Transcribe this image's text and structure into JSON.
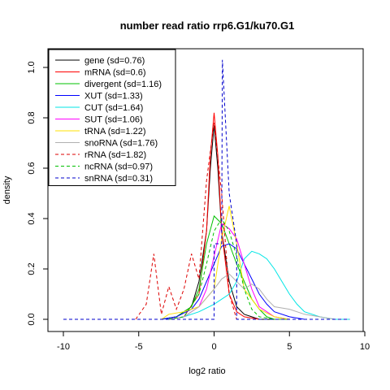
{
  "chart_data": {
    "type": "line",
    "title": "number read ratio rrp6.G1/ku70.G1",
    "xlabel": "log2 ratio",
    "ylabel": "density",
    "xlim": [
      -10,
      10
    ],
    "ylim": [
      0,
      1.05
    ],
    "xticks": [
      -10,
      -5,
      0,
      5,
      10
    ],
    "yticks": [
      0.0,
      0.2,
      0.4,
      0.6,
      0.8,
      1.0
    ],
    "xtick_labels": [
      "-10",
      "-5",
      "0",
      "5",
      "10"
    ],
    "ytick_labels": [
      "0.0",
      "0.2",
      "0.4",
      "0.6",
      "0.8",
      "1.0"
    ],
    "grid": false,
    "legend_position": "top-left",
    "series": [
      {
        "name": "gene (sd=0.76)",
        "color": "#000000",
        "dash": false,
        "x": [
          -3.5,
          -2.5,
          -1.5,
          -1.0,
          -0.5,
          -0.25,
          0.0,
          0.25,
          0.5,
          1.0,
          1.5,
          2.0,
          2.5,
          3.0,
          4.0,
          5.0
        ],
        "y": [
          0.0,
          0.01,
          0.05,
          0.15,
          0.35,
          0.6,
          0.77,
          0.6,
          0.35,
          0.15,
          0.05,
          0.02,
          0.01,
          0.0,
          0.0,
          0.0
        ]
      },
      {
        "name": "mRNA (sd=0.6)",
        "color": "#ff0000",
        "dash": false,
        "x": [
          -3.0,
          -2.0,
          -1.0,
          -0.5,
          -0.25,
          0.0,
          0.25,
          0.5,
          1.0,
          1.5,
          2.0,
          3.0
        ],
        "y": [
          0.0,
          0.01,
          0.1,
          0.35,
          0.65,
          0.82,
          0.65,
          0.35,
          0.1,
          0.03,
          0.01,
          0.0
        ]
      },
      {
        "name": "divergent (sd=1.16)",
        "color": "#00c000",
        "dash": false,
        "x": [
          -3.5,
          -2.5,
          -1.5,
          -1.0,
          -0.5,
          0.0,
          0.5,
          1.0,
          1.5,
          2.0,
          2.5,
          3.0,
          3.5,
          4.0,
          5.0
        ],
        "y": [
          0.0,
          0.01,
          0.05,
          0.12,
          0.3,
          0.41,
          0.38,
          0.3,
          0.22,
          0.15,
          0.08,
          0.04,
          0.01,
          0.0,
          0.0
        ]
      },
      {
        "name": "XUT (sd=1.33)",
        "color": "#0000ff",
        "dash": false,
        "x": [
          -3.5,
          -2.5,
          -1.5,
          -1.0,
          -0.5,
          0.0,
          0.5,
          1.0,
          1.5,
          2.0,
          2.5,
          3.0,
          3.5,
          4.0,
          5.0,
          6.0
        ],
        "y": [
          0.0,
          0.01,
          0.04,
          0.08,
          0.15,
          0.22,
          0.29,
          0.3,
          0.28,
          0.22,
          0.16,
          0.1,
          0.06,
          0.03,
          0.01,
          0.0
        ]
      },
      {
        "name": "CUT (sd=1.64)",
        "color": "#00e5e5",
        "dash": false,
        "x": [
          -3.0,
          -2.0,
          -1.0,
          0.0,
          1.0,
          1.5,
          2.0,
          2.5,
          3.0,
          3.5,
          4.0,
          4.5,
          5.0,
          5.5,
          6.0,
          7.0,
          8.0,
          9.0
        ],
        "y": [
          0.0,
          0.01,
          0.03,
          0.06,
          0.1,
          0.15,
          0.24,
          0.27,
          0.26,
          0.24,
          0.2,
          0.15,
          0.1,
          0.06,
          0.03,
          0.01,
          0.0,
          0.0
        ]
      },
      {
        "name": "SUT (sd=1.06)",
        "color": "#ff00ff",
        "dash": false,
        "x": [
          -3.0,
          -2.0,
          -1.0,
          -0.5,
          0.0,
          0.5,
          1.0,
          1.5,
          2.0,
          2.5,
          3.0,
          4.0,
          5.0
        ],
        "y": [
          0.0,
          0.01,
          0.05,
          0.12,
          0.25,
          0.38,
          0.36,
          0.32,
          0.22,
          0.12,
          0.05,
          0.01,
          0.0
        ]
      },
      {
        "name": "tRNA (sd=1.22)",
        "color": "#ffe000",
        "dash": false,
        "x": [
          -3.5,
          -3.0,
          -2.0,
          -1.0,
          0.0,
          0.5,
          1.0,
          1.5,
          2.0,
          3.0,
          4.0,
          5.0
        ],
        "y": [
          0.0,
          0.02,
          0.03,
          0.05,
          0.12,
          0.32,
          0.45,
          0.3,
          0.12,
          0.04,
          0.01,
          0.0
        ]
      },
      {
        "name": "snoRNA (sd=1.76)",
        "color": "#b0b0b0",
        "dash": false,
        "x": [
          -3.0,
          -2.0,
          -1.0,
          0.0,
          0.5,
          1.0,
          1.5,
          2.0,
          2.5,
          3.0,
          3.5,
          4.0,
          5.0,
          6.0,
          7.0,
          8.0
        ],
        "y": [
          0.0,
          0.01,
          0.05,
          0.12,
          0.16,
          0.18,
          0.15,
          0.12,
          0.14,
          0.12,
          0.08,
          0.05,
          0.04,
          0.02,
          0.01,
          0.0
        ]
      },
      {
        "name": "rRNA (sd=1.82)",
        "color": "#dd0000",
        "dash": true,
        "x": [
          -5.2,
          -4.5,
          -4.0,
          -3.5,
          -3.0,
          -2.5,
          -2.0,
          -1.5,
          -1.0,
          -0.5,
          0.0,
          0.5,
          1.0,
          1.5
        ],
        "y": [
          0.0,
          0.06,
          0.26,
          0.02,
          0.13,
          0.04,
          0.12,
          0.26,
          0.16,
          0.55,
          0.78,
          0.5,
          0.1,
          0.0
        ]
      },
      {
        "name": "ncRNA (sd=0.97)",
        "color": "#00c000",
        "dash": true,
        "x": [
          -3.0,
          -2.0,
          -1.0,
          -0.5,
          0.0,
          0.5,
          1.0,
          1.5,
          2.0,
          2.5,
          3.0,
          4.0
        ],
        "y": [
          0.0,
          0.01,
          0.1,
          0.22,
          0.35,
          0.4,
          0.35,
          0.25,
          0.12,
          0.04,
          0.01,
          0.0
        ]
      },
      {
        "name": "snRNA (sd=0.31)",
        "color": "#0000cc",
        "dash": true,
        "x": [
          -10.0,
          -5.0,
          0.0,
          0.0,
          0.5,
          0.55,
          1.0,
          1.5,
          1.5,
          5.0,
          9.0
        ],
        "y": [
          0.0,
          0.0,
          0.0,
          0.3,
          0.3,
          1.03,
          0.5,
          0.3,
          0.0,
          0.0,
          0.0
        ]
      }
    ]
  }
}
